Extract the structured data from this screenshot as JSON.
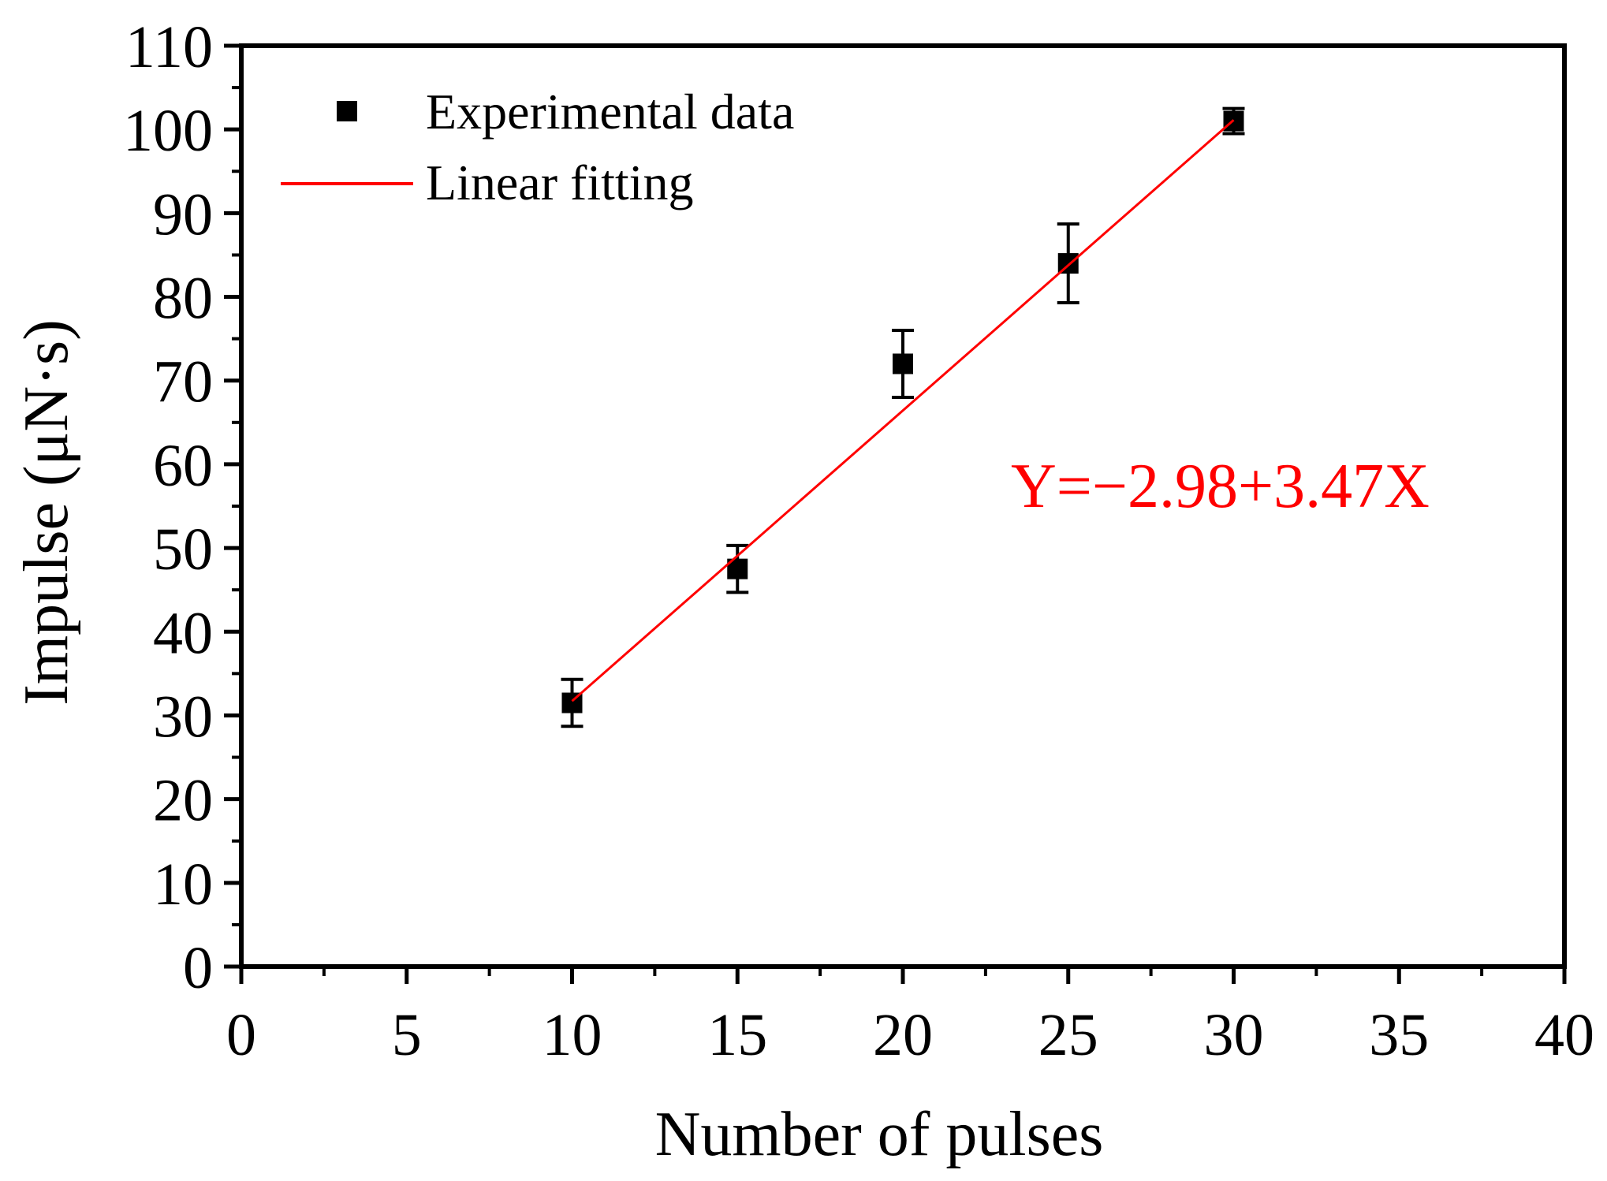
{
  "chart_data": {
    "type": "scatter",
    "title": "",
    "xlabel": "Number of pulses",
    "ylabel": "Impulse (μN·s)",
    "xlim": [
      0,
      40
    ],
    "ylim": [
      0,
      110
    ],
    "xticks": [
      0,
      5,
      10,
      15,
      20,
      25,
      30,
      35,
      40
    ],
    "yticks": [
      0,
      10,
      20,
      30,
      40,
      50,
      60,
      70,
      80,
      90,
      100,
      110
    ],
    "grid": false,
    "legend_position": "top-left",
    "series": [
      {
        "name": "Experimental data",
        "kind": "scatter",
        "marker": "square",
        "color": "#000000",
        "x": [
          10,
          15,
          20,
          25,
          30
        ],
        "y": [
          31.5,
          47.5,
          72,
          84,
          101
        ],
        "error": [
          2.8,
          2.8,
          4,
          4.7,
          1.5
        ]
      },
      {
        "name": "Linear fitting",
        "kind": "line",
        "color": "#ff0000",
        "intercept": -2.98,
        "slope": 3.47,
        "x_range": [
          10,
          30
        ]
      }
    ],
    "annotation": {
      "text": "Y=−2.98+3.47X",
      "color": "#ff0000",
      "position": "right-middle"
    }
  }
}
